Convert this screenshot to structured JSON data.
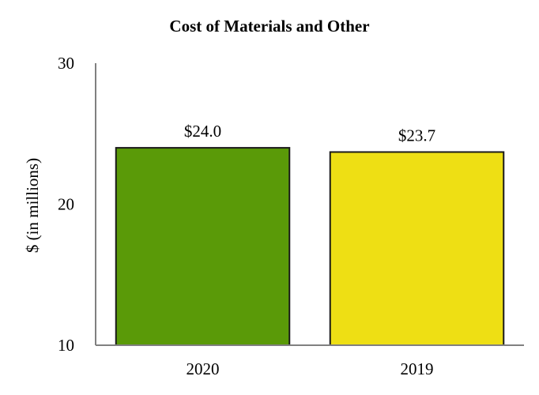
{
  "chart_data": {
    "type": "bar",
    "title": "Cost of Materials and Other",
    "xlabel": "",
    "ylabel": "$ (in millions)",
    "ylim": [
      10,
      30
    ],
    "yticks": [
      10,
      20,
      30
    ],
    "categories": [
      "2020",
      "2019"
    ],
    "values": [
      24.0,
      23.7
    ],
    "data_labels": [
      "$24.0",
      "$23.7"
    ],
    "colors": [
      "#5a9a08",
      "#eedf14"
    ],
    "grid": false,
    "legend": "none"
  }
}
